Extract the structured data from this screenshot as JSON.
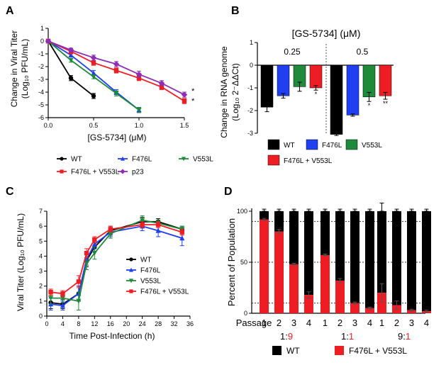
{
  "colors": {
    "wt": "#000000",
    "f476l": "#1f3ff0",
    "v553l": "#1f8a3a",
    "f476l_v553l": "#ee1d24",
    "p23": "#8e2eb5",
    "red_text": "#ee1d24"
  },
  "chart_data": [
    {
      "id": "A",
      "panel_label": "A",
      "type": "line",
      "title": "",
      "xlabel": "[GS-5734] (μM)",
      "ylabel_lines": [
        "Change in Viral Titer",
        "(Log₁₀ PFU/mL)"
      ],
      "xlim": [
        0,
        1.5
      ],
      "ylim": [
        -6,
        1
      ],
      "xticks": [
        "0.0",
        "0.5",
        "1.0",
        "1.5"
      ],
      "xtick_values": [
        0,
        0.5,
        1.0,
        1.5
      ],
      "yticks": [
        "1",
        "0",
        "-1",
        "-2",
        "-3",
        "-4",
        "-5",
        "-6"
      ],
      "ytick_values": [
        1,
        0,
        -1,
        -2,
        -3,
        -4,
        -5,
        -6
      ],
      "series": [
        {
          "name": "WT",
          "color_key": "wt",
          "marker": "circle",
          "x": [
            0,
            0.25,
            0.5
          ],
          "y": [
            0,
            -2.9,
            -4.3
          ],
          "err": [
            0.1,
            0.2,
            0.2
          ]
        },
        {
          "name": "F476L",
          "color_key": "f476l",
          "marker": "triangle",
          "x": [
            0,
            0.25,
            0.5,
            0.75,
            1.0
          ],
          "y": [
            0,
            -1.1,
            -2.5,
            -4.0,
            -5.4
          ],
          "err": [
            0.1,
            0.15,
            0.2,
            0.2,
            0.2
          ]
        },
        {
          "name": "V553L",
          "color_key": "v553l",
          "marker": "triangle-down",
          "x": [
            0,
            0.25,
            0.5,
            0.75,
            1.0
          ],
          "y": [
            0,
            -1.5,
            -2.8,
            -4.1,
            -5.4
          ],
          "err": [
            0.1,
            0.15,
            0.15,
            0.2,
            0.2
          ]
        },
        {
          "name": "F476L + V553L",
          "color_key": "f476l_v553l",
          "marker": "square",
          "x": [
            0,
            0.25,
            0.5,
            0.75,
            1.0,
            1.25,
            1.5
          ],
          "y": [
            0,
            -0.8,
            -1.7,
            -2.3,
            -2.9,
            -3.6,
            -4.7
          ],
          "err": [
            0.1,
            0.2,
            0.2,
            0.2,
            0.2,
            0.2,
            0.2
          ]
        },
        {
          "name": "p23",
          "color_key": "p23",
          "marker": "diamond",
          "x": [
            0,
            0.25,
            0.5,
            0.75,
            1.0,
            1.25,
            1.5
          ],
          "y": [
            0,
            -0.7,
            -1.3,
            -1.8,
            -2.6,
            -3.3,
            -4.2
          ],
          "err": [
            0.1,
            0.15,
            0.2,
            0.2,
            0.25,
            0.2,
            0.2
          ]
        }
      ],
      "annotations": [
        "*",
        "*"
      ],
      "legend_order": [
        0,
        1,
        2,
        3,
        4
      ]
    },
    {
      "id": "B",
      "panel_label": "B",
      "type": "bar",
      "title": "[GS-5734] (μM)",
      "group_labels": [
        "0.25",
        "0.5"
      ],
      "ylabel_lines": [
        "Change in RNA genome",
        "(Log₁₀ 2⁻ΔΔCt)"
      ],
      "ylim": [
        -3,
        1
      ],
      "yticks": [
        "1",
        "0",
        "-1",
        "-2",
        "-3"
      ],
      "ytick_values": [
        1,
        0,
        -1,
        -2,
        -3
      ],
      "series_names": [
        "WT",
        "F476L",
        "V553L",
        "F476L + V553L"
      ],
      "series_color_keys": [
        "wt",
        "f476l",
        "v553l",
        "f476l_v553l"
      ],
      "groups": [
        {
          "values": [
            -1.85,
            -1.35,
            -0.95,
            -1.0
          ],
          "err": [
            0.2,
            0.1,
            0.2,
            0.1
          ],
          "sig": [
            "",
            "",
            "",
            "*"
          ]
        },
        {
          "values": [
            -3.05,
            -2.2,
            -1.4,
            -1.35
          ],
          "err": [
            0.05,
            0.05,
            0.2,
            0.15
          ],
          "sig": [
            "",
            "",
            "*",
            "**"
          ]
        }
      ]
    },
    {
      "id": "C",
      "panel_label": "C",
      "type": "line",
      "title": "",
      "xlabel": "Time Post-Infection (h)",
      "ylabel": "Viral Titer (Log₁₀ PFU/mL)",
      "xlim": [
        0,
        36
      ],
      "ylim": [
        0,
        7
      ],
      "xticks": [
        "0",
        "4",
        "8",
        "12",
        "16",
        "20",
        "24",
        "28",
        "32",
        "36"
      ],
      "xtick_values": [
        0,
        4,
        8,
        12,
        16,
        20,
        24,
        28,
        32,
        36
      ],
      "yticks": [
        "0",
        "1",
        "2",
        "3",
        "4",
        "5",
        "6",
        "7"
      ],
      "ytick_values": [
        0,
        1,
        2,
        3,
        4,
        5,
        6,
        7
      ],
      "series": [
        {
          "name": "WT",
          "color_key": "wt",
          "marker": "circle",
          "x": [
            1,
            4,
            8,
            10,
            12,
            16,
            24,
            28,
            34
          ],
          "y": [
            0.9,
            0.8,
            1.5,
            3.7,
            4.6,
            5.7,
            6.3,
            6.3,
            5.8
          ],
          "err": [
            0.4,
            0.3,
            0.5,
            0.4,
            0.3,
            0.3,
            0.3,
            0.2,
            0.2
          ]
        },
        {
          "name": "F476L",
          "color_key": "f476l",
          "marker": "triangle",
          "x": [
            1,
            4,
            8,
            10,
            12,
            16,
            24,
            28,
            34
          ],
          "y": [
            0.8,
            0.7,
            1.5,
            3.8,
            4.8,
            5.6,
            6.0,
            5.7,
            5.2
          ],
          "err": [
            0.4,
            0.3,
            0.5,
            0.4,
            0.3,
            0.3,
            0.3,
            0.4,
            0.5
          ]
        },
        {
          "name": "V553L",
          "color_key": "v553l",
          "marker": "triangle-down",
          "x": [
            1,
            4,
            8,
            10,
            12,
            16,
            24,
            28,
            34
          ],
          "y": [
            1.2,
            1.2,
            1.0,
            3.5,
            4.2,
            5.5,
            6.4,
            6.2,
            5.8
          ],
          "err": [
            0.4,
            0.3,
            0.6,
            0.4,
            0.4,
            0.3,
            0.3,
            0.2,
            0.2
          ]
        },
        {
          "name": "F476L + V553L",
          "color_key": "f476l_v553l",
          "marker": "square",
          "x": [
            1,
            4,
            8,
            10,
            12,
            16,
            24,
            28,
            34
          ],
          "y": [
            1.6,
            1.5,
            2.3,
            4.2,
            5.1,
            5.8,
            6.1,
            6.1,
            5.6
          ],
          "err": [
            0.2,
            0.2,
            0.4,
            0.3,
            0.2,
            0.2,
            0.2,
            0.2,
            0.2
          ]
        }
      ]
    },
    {
      "id": "D",
      "panel_label": "D",
      "type": "bar",
      "title": "",
      "ylabel": "Percent of Population",
      "ylim": [
        0,
        100
      ],
      "yticks": [
        "100",
        "50",
        "0"
      ],
      "ytick_values": [
        100,
        50,
        0
      ],
      "dotted_lines": [
        90,
        50,
        10
      ],
      "passage_label": "Passage",
      "passage_ticks": [
        "1",
        "2",
        "3",
        "4",
        "1",
        "2",
        "3",
        "4",
        "1",
        "2",
        "3",
        "4"
      ],
      "groups": [
        {
          "ratio_a": "1",
          "ratio_sep": ":",
          "ratio_b": "9",
          "ratio_a_red": false,
          "ratio_b_red": true,
          "f476l_v553l_percent": [
            92,
            80,
            48,
            18
          ],
          "err": [
            1,
            2,
            1,
            3
          ]
        },
        {
          "ratio_a": "1",
          "ratio_sep": ":",
          "ratio_b": "1",
          "ratio_a_red": false,
          "ratio_b_red": true,
          "f476l_v553l_percent": [
            57,
            32,
            10,
            5
          ],
          "err": [
            1,
            2,
            1,
            1
          ]
        },
        {
          "ratio_a": "9",
          "ratio_sep": ":",
          "ratio_b": "1",
          "ratio_a_red": false,
          "ratio_b_red": true,
          "f476l_v553l_percent": [
            20,
            8,
            3,
            2
          ],
          "err": [
            9,
            4,
            1,
            1
          ]
        }
      ],
      "legend": [
        "WT",
        "F476L + V553L"
      ]
    }
  ]
}
